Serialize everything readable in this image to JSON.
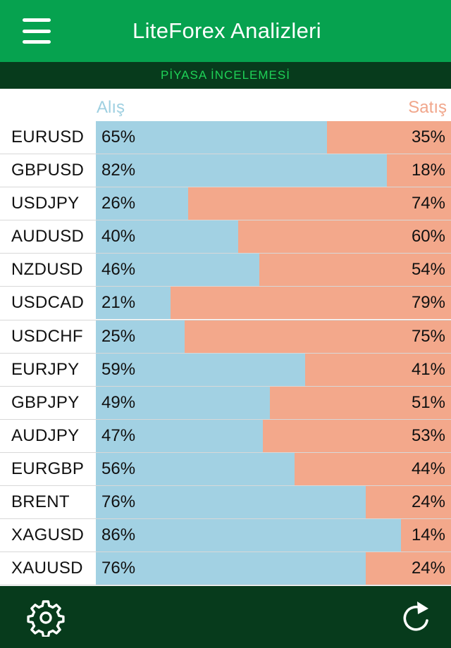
{
  "header": {
    "title": "LiteForex Analizleri",
    "menu_icon": "hamburger-menu-icon"
  },
  "subheader": {
    "label": "PİYASA İNCELEMESİ"
  },
  "columns": {
    "buy_label": "Alış",
    "sell_label": "Satış"
  },
  "colors": {
    "header_bg": "#06a24f",
    "subbar_bg": "#073b1c",
    "subbar_text": "#1fd257",
    "buy": "#a2d1e3",
    "sell": "#f3a88b"
  },
  "rows": [
    {
      "pair": "EURUSD",
      "buy": 65,
      "sell": 35,
      "buy_label": "65%",
      "sell_label": "35%"
    },
    {
      "pair": "GBPUSD",
      "buy": 82,
      "sell": 18,
      "buy_label": "82%",
      "sell_label": "18%"
    },
    {
      "pair": "USDJPY",
      "buy": 26,
      "sell": 74,
      "buy_label": "26%",
      "sell_label": "74%"
    },
    {
      "pair": "AUDUSD",
      "buy": 40,
      "sell": 60,
      "buy_label": "40%",
      "sell_label": "60%"
    },
    {
      "pair": "NZDUSD",
      "buy": 46,
      "sell": 54,
      "buy_label": "46%",
      "sell_label": "54%"
    },
    {
      "pair": "USDCAD",
      "buy": 21,
      "sell": 79,
      "buy_label": "21%",
      "sell_label": "79%"
    },
    {
      "pair": "USDCHF",
      "buy": 25,
      "sell": 75,
      "buy_label": "25%",
      "sell_label": "75%"
    },
    {
      "pair": "EURJPY",
      "buy": 59,
      "sell": 41,
      "buy_label": "59%",
      "sell_label": "41%"
    },
    {
      "pair": "GBPJPY",
      "buy": 49,
      "sell": 51,
      "buy_label": "49%",
      "sell_label": "51%"
    },
    {
      "pair": "AUDJPY",
      "buy": 47,
      "sell": 53,
      "buy_label": "47%",
      "sell_label": "53%"
    },
    {
      "pair": "EURGBP",
      "buy": 56,
      "sell": 44,
      "buy_label": "56%",
      "sell_label": "44%"
    },
    {
      "pair": "BRENT",
      "buy": 76,
      "sell": 24,
      "buy_label": "76%",
      "sell_label": "24%"
    },
    {
      "pair": "XAGUSD",
      "buy": 86,
      "sell": 14,
      "buy_label": "86%",
      "sell_label": "14%"
    },
    {
      "pair": "XAUUSD",
      "buy": 76,
      "sell": 24,
      "buy_label": "76%",
      "sell_label": "24%"
    }
  ],
  "footer": {
    "settings_icon": "gear-icon",
    "refresh_icon": "refresh-icon"
  }
}
